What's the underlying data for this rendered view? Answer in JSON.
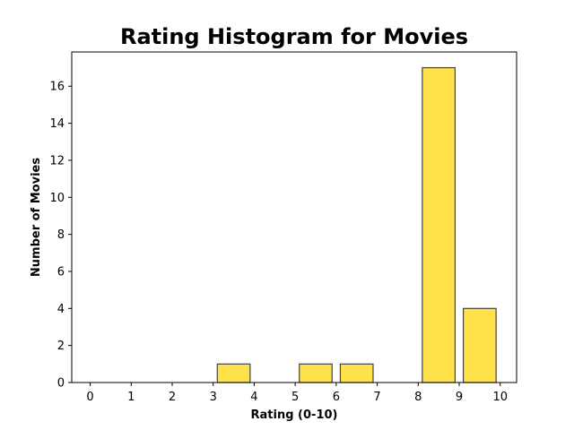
{
  "chart_data": {
    "type": "bar",
    "title": "Rating Histogram for Movies",
    "xlabel": "Rating (0-10)",
    "ylabel": "Number of Movies",
    "xlim": [
      -0.45,
      10.4
    ],
    "ylim": [
      0,
      17.85
    ],
    "x_ticks": [
      0,
      1,
      2,
      3,
      4,
      5,
      6,
      7,
      8,
      9,
      10
    ],
    "y_ticks": [
      0,
      2,
      4,
      6,
      8,
      10,
      12,
      14,
      16
    ],
    "bins": [
      {
        "start": 0,
        "end": 1,
        "value": 0
      },
      {
        "start": 1,
        "end": 2,
        "value": 0
      },
      {
        "start": 2,
        "end": 3,
        "value": 0
      },
      {
        "start": 3,
        "end": 4,
        "value": 1
      },
      {
        "start": 4,
        "end": 5,
        "value": 0
      },
      {
        "start": 5,
        "end": 6,
        "value": 1
      },
      {
        "start": 6,
        "end": 7,
        "value": 1
      },
      {
        "start": 7,
        "end": 8,
        "value": 0
      },
      {
        "start": 8,
        "end": 9,
        "value": 17
      },
      {
        "start": 9,
        "end": 10,
        "value": 4
      }
    ],
    "bar_color": "#FFE14A",
    "edge_color": "#444444",
    "grid": false
  }
}
